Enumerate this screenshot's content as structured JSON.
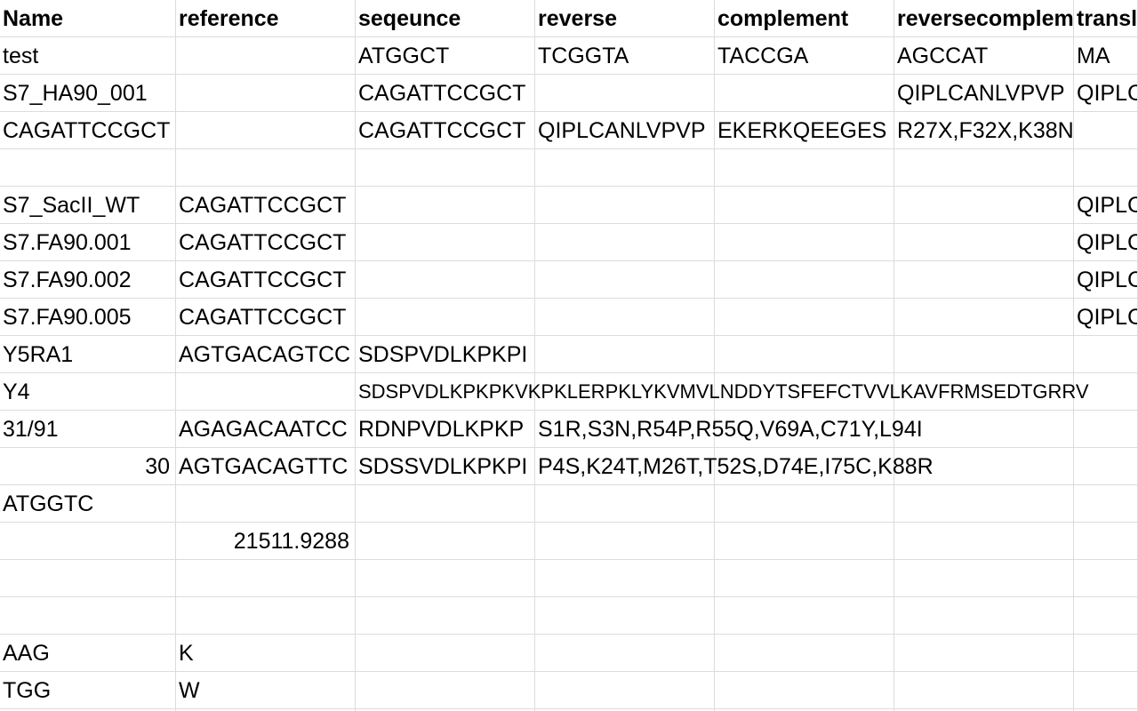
{
  "sheet": {
    "columns": [
      "Name",
      "reference",
      "seqeunce",
      "reverse",
      "complement",
      "reversecomplement",
      "translation"
    ],
    "rows": [
      [
        "test",
        "",
        "ATGGCT",
        "TCGGTA",
        "TACCGA",
        "AGCCAT",
        "MA"
      ],
      [
        "S7_HA90_001",
        "",
        "CAGATTCCGCT",
        "",
        "",
        "QIPLCANLVPVP",
        "QIPLC"
      ],
      [
        "CAGATTCCGCT",
        "",
        "CAGATTCCGCT",
        "QIPLCANLVPVP",
        "EKERKQEEGES",
        "R27X,F32X,K38N",
        ""
      ],
      [
        "",
        "",
        "",
        "",
        "",
        "",
        ""
      ],
      [
        "S7_SacII_WT",
        "CAGATTCCGCT",
        "",
        "",
        "",
        "",
        "QIPLC"
      ],
      [
        "S7.FA90.001",
        "CAGATTCCGCT",
        "",
        "",
        "",
        "",
        "QIPLC"
      ],
      [
        "S7.FA90.002",
        "CAGATTCCGCT",
        "",
        "",
        "",
        "",
        "QIPLC"
      ],
      [
        "S7.FA90.005",
        "CAGATTCCGCT",
        "",
        "",
        "",
        "",
        "QIPLC"
      ],
      [
        "Y5RA1",
        "AGTGACAGTCC",
        "SDSPVDLKPKPI",
        "",
        "",
        "",
        ""
      ],
      [
        "Y4",
        "",
        "SDSPVDLKPKPKVKPKLERPKLYKVMVLNDDYTSFEFCTVVLKAVFRMSEDTGRRV",
        "",
        "",
        "",
        ""
      ],
      [
        "31/91",
        "AGAGACAATCC",
        "RDNPVDLKPKP",
        "S1R,S3N,R54P,R55Q,V69A,C71Y,L94I",
        "",
        "",
        ""
      ],
      [
        "30",
        "AGTGACAGTTC",
        "SDSSVDLKPKPI",
        "P4S,K24T,M26T,T52S,D74E,I75C,K88R",
        "",
        "",
        ""
      ],
      [
        "ATGGTC",
        "",
        "",
        "",
        "",
        "",
        ""
      ],
      [
        "",
        "21511.9288",
        "",
        "",
        "",
        "",
        ""
      ],
      [
        "",
        "",
        "",
        "",
        "",
        "",
        ""
      ],
      [
        "",
        "",
        "",
        "",
        "",
        "",
        ""
      ],
      [
        "AAG",
        "K",
        "",
        "",
        "",
        "",
        ""
      ],
      [
        "TGG",
        "W",
        "",
        "",
        "",
        "",
        ""
      ],
      [
        "",
        "",
        "",
        "",
        "",
        "",
        ""
      ]
    ]
  }
}
